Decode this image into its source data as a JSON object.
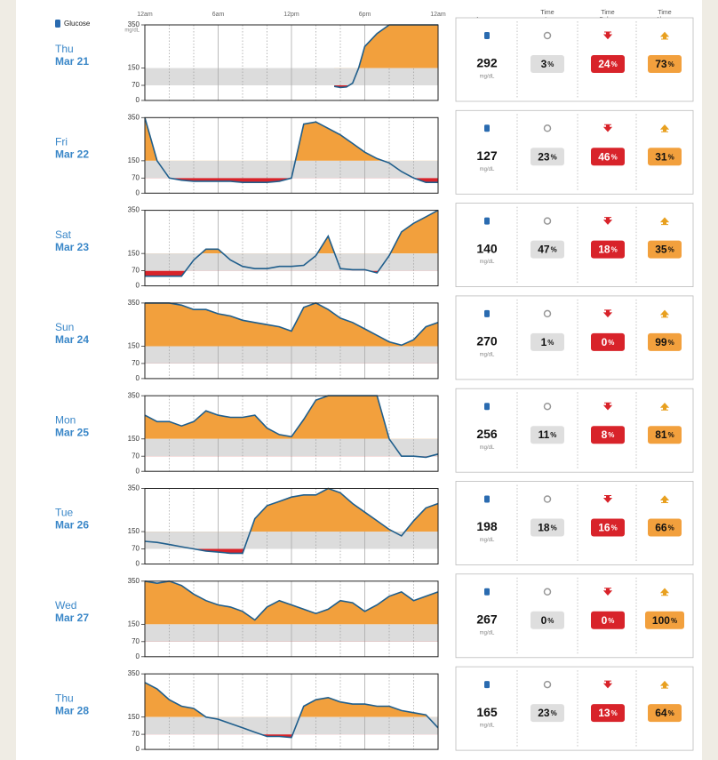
{
  "legend": "Glucose",
  "y_unit": "mg/dL",
  "percent_sign": "%",
  "headers": [
    [
      "Average",
      "Glucose"
    ],
    [
      "Time",
      "In",
      "Target"
    ],
    [
      "Time",
      "Below",
      "Target"
    ],
    [
      "Time",
      "Above",
      "Target"
    ]
  ],
  "xticks": [
    {
      "value": 0,
      "label": "12am"
    },
    {
      "value": 6,
      "label": "6am"
    },
    {
      "value": 12,
      "label": "12pm"
    },
    {
      "value": 18,
      "label": "6pm"
    },
    {
      "value": 24,
      "label": "12am"
    }
  ],
  "xgrid": [
    2,
    4,
    8,
    10,
    14,
    16,
    20,
    22
  ],
  "chart_data": [
    {
      "type": "line",
      "day": "Thu",
      "date": "Mar 21",
      "xlim": [
        0,
        24
      ],
      "ylim": [
        0,
        350
      ],
      "yticks": [
        0,
        70,
        150,
        350
      ],
      "target_range": [
        70,
        150
      ],
      "color": "#1f5e8c",
      "x": [
        15.5,
        16,
        16.5,
        17,
        17.5,
        18,
        19,
        20,
        21,
        22,
        23,
        24
      ],
      "values": [
        65,
        60,
        62,
        80,
        150,
        250,
        310,
        350,
        350,
        350,
        350,
        350
      ],
      "avg": 292,
      "in_target": 3,
      "below": 24,
      "above": 73
    },
    {
      "type": "line",
      "day": "Fri",
      "date": "Mar 22",
      "xlim": [
        0,
        24
      ],
      "ylim": [
        0,
        350
      ],
      "yticks": [
        0,
        70,
        150,
        350
      ],
      "target_range": [
        70,
        150
      ],
      "color": "#1f5e8c",
      "x": [
        0,
        1,
        2,
        3,
        4,
        5,
        6,
        7,
        8,
        9,
        10,
        11,
        12,
        13,
        14,
        15,
        16,
        17,
        18,
        19,
        20,
        21,
        22,
        23,
        24
      ],
      "values": [
        350,
        150,
        70,
        60,
        55,
        55,
        55,
        55,
        50,
        50,
        50,
        55,
        70,
        320,
        330,
        300,
        270,
        230,
        190,
        160,
        140,
        100,
        70,
        50,
        50
      ],
      "avg": 127,
      "in_target": 23,
      "below": 46,
      "above": 31
    },
    {
      "type": "line",
      "day": "Sat",
      "date": "Mar 23",
      "xlim": [
        0,
        24
      ],
      "ylim": [
        0,
        350
      ],
      "yticks": [
        0,
        70,
        150,
        350
      ],
      "target_range": [
        70,
        150
      ],
      "color": "#1f5e8c",
      "x": [
        0,
        1,
        2,
        3,
        4,
        5,
        6,
        7,
        8,
        9,
        10,
        11,
        12,
        13,
        14,
        15,
        16,
        17,
        18,
        19,
        20,
        21,
        22,
        23,
        24
      ],
      "values": [
        45,
        45,
        45,
        45,
        120,
        170,
        170,
        120,
        90,
        80,
        80,
        90,
        90,
        95,
        140,
        230,
        80,
        75,
        75,
        60,
        140,
        250,
        290,
        320,
        350
      ],
      "avg": 140,
      "in_target": 47,
      "below": 18,
      "above": 35
    },
    {
      "type": "line",
      "day": "Sun",
      "date": "Mar 24",
      "xlim": [
        0,
        24
      ],
      "ylim": [
        0,
        350
      ],
      "yticks": [
        0,
        70,
        150,
        350
      ],
      "target_range": [
        70,
        150
      ],
      "color": "#1f5e8c",
      "x": [
        0,
        1,
        2,
        3,
        4,
        5,
        6,
        7,
        8,
        9,
        10,
        11,
        12,
        13,
        14,
        15,
        16,
        17,
        18,
        19,
        20,
        21,
        22,
        23,
        24
      ],
      "values": [
        350,
        350,
        350,
        340,
        320,
        320,
        300,
        290,
        270,
        260,
        250,
        240,
        220,
        330,
        350,
        320,
        280,
        260,
        230,
        200,
        170,
        155,
        180,
        240,
        260
      ],
      "avg": 270,
      "in_target": 1,
      "below": 0,
      "above": 99
    },
    {
      "type": "line",
      "day": "Mon",
      "date": "Mar 25",
      "xlim": [
        0,
        24
      ],
      "ylim": [
        0,
        350
      ],
      "yticks": [
        0,
        70,
        150,
        350
      ],
      "target_range": [
        70,
        150
      ],
      "color": "#1f5e8c",
      "x": [
        0,
        1,
        2,
        3,
        4,
        5,
        6,
        7,
        8,
        9,
        10,
        11,
        12,
        13,
        14,
        15,
        16,
        17,
        18,
        19,
        20,
        21,
        22,
        23,
        24
      ],
      "values": [
        260,
        230,
        230,
        210,
        230,
        280,
        260,
        250,
        250,
        260,
        200,
        170,
        160,
        240,
        330,
        350,
        350,
        350,
        350,
        350,
        150,
        70,
        70,
        65,
        80
      ],
      "avg": 256,
      "in_target": 11,
      "below": 8,
      "above": 81
    },
    {
      "type": "line",
      "day": "Tue",
      "date": "Mar 26",
      "xlim": [
        0,
        24
      ],
      "ylim": [
        0,
        350
      ],
      "yticks": [
        0,
        70,
        150,
        350
      ],
      "target_range": [
        70,
        150
      ],
      "color": "#1f5e8c",
      "x": [
        0,
        1,
        2,
        3,
        4,
        5,
        6,
        7,
        8,
        9,
        10,
        11,
        12,
        13,
        14,
        15,
        16,
        17,
        18,
        19,
        20,
        21,
        22,
        23,
        24
      ],
      "values": [
        105,
        100,
        90,
        80,
        70,
        60,
        55,
        50,
        50,
        210,
        270,
        290,
        310,
        320,
        320,
        350,
        330,
        280,
        240,
        200,
        160,
        130,
        200,
        260,
        280
      ],
      "avg": 198,
      "in_target": 18,
      "below": 16,
      "above": 66
    },
    {
      "type": "line",
      "day": "Wed",
      "date": "Mar 27",
      "xlim": [
        0,
        24
      ],
      "ylim": [
        0,
        350
      ],
      "yticks": [
        0,
        70,
        150,
        350
      ],
      "target_range": [
        70,
        150
      ],
      "color": "#1f5e8c",
      "x": [
        0,
        1,
        2,
        3,
        4,
        5,
        6,
        7,
        8,
        9,
        10,
        11,
        12,
        13,
        14,
        15,
        16,
        17,
        18,
        19,
        20,
        21,
        22,
        23,
        24
      ],
      "values": [
        350,
        340,
        350,
        330,
        290,
        260,
        240,
        230,
        210,
        170,
        230,
        260,
        240,
        220,
        200,
        220,
        260,
        250,
        210,
        240,
        280,
        300,
        260,
        280,
        300
      ],
      "avg": 267,
      "in_target": 0,
      "below": 0,
      "above": 100
    },
    {
      "type": "line",
      "day": "Thu",
      "date": "Mar 28",
      "xlim": [
        0,
        24
      ],
      "ylim": [
        0,
        350
      ],
      "yticks": [
        0,
        70,
        150,
        350
      ],
      "target_range": [
        70,
        150
      ],
      "color": "#1f5e8c",
      "x": [
        0,
        1,
        2,
        3,
        4,
        5,
        6,
        7,
        8,
        9,
        10,
        11,
        12,
        13,
        14,
        15,
        16,
        17,
        18,
        19,
        20,
        21,
        22,
        23,
        24
      ],
      "values": [
        310,
        280,
        230,
        200,
        190,
        150,
        140,
        120,
        100,
        80,
        60,
        60,
        55,
        200,
        230,
        240,
        220,
        210,
        210,
        200,
        200,
        180,
        170,
        160,
        100
      ],
      "avg": 165,
      "in_target": 23,
      "below": 13,
      "above": 64
    }
  ]
}
